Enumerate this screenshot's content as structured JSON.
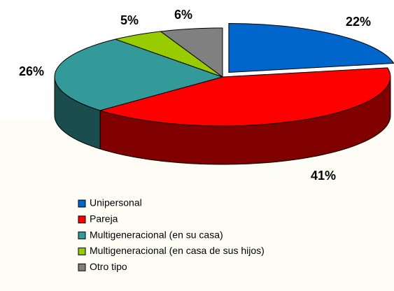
{
  "chart_data": {
    "type": "pie",
    "categories": [
      "Unipersonal",
      "Pareja",
      "Multigeneracional (en su casa)",
      "Multigeneracional (en casa de sus hijos)",
      "Otro tipo"
    ],
    "values": [
      22,
      41,
      26,
      5,
      6
    ],
    "value_labels": [
      "22%",
      "41%",
      "26%",
      "5%",
      "6%"
    ],
    "colors": [
      "#0066cc",
      "#ff0000",
      "#339999",
      "#99cc00",
      "#808080"
    ],
    "legend": "bottom"
  }
}
